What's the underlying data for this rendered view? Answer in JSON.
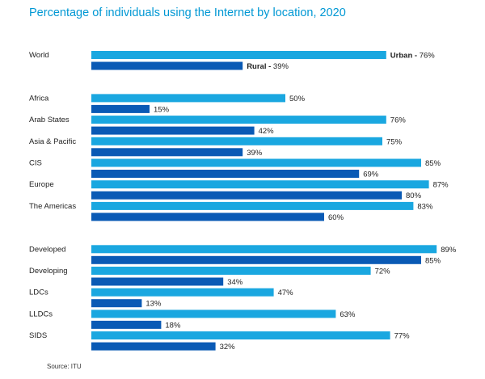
{
  "chart_data": {
    "type": "bar",
    "orientation": "horizontal",
    "title": "Percentage of individuals using the Internet by location, 2020",
    "source": "Source: ITU",
    "xlim": [
      0,
      100
    ],
    "value_suffix": "%",
    "series_colors": {
      "Urban": "#1aa7e0",
      "Rural": "#0a5ab5"
    },
    "groups": [
      [
        {
          "category": "World",
          "urban": 76,
          "rural": 39,
          "series_labels": true
        }
      ],
      [
        {
          "category": "Africa",
          "urban": 50,
          "rural": 15
        },
        {
          "category": "Arab States",
          "urban": 76,
          "rural": 42
        },
        {
          "category": "Asia & Pacific",
          "urban": 75,
          "rural": 39
        },
        {
          "category": "CIS",
          "urban": 85,
          "rural": 69
        },
        {
          "category": "Europe",
          "urban": 87,
          "rural": 80
        },
        {
          "category": "The Americas",
          "urban": 83,
          "rural": 60
        }
      ],
      [
        {
          "category": "Developed",
          "urban": 89,
          "rural": 85
        },
        {
          "category": "Developing",
          "urban": 72,
          "rural": 34
        },
        {
          "category": "LDCs",
          "urban": 47,
          "rural": 13
        },
        {
          "category": "LLDCs",
          "urban": 63,
          "rural": 18
        },
        {
          "category": "SIDS",
          "urban": 77,
          "rural": 32
        }
      ]
    ],
    "series_names": {
      "urban": "Urban",
      "rural": "Rural"
    }
  }
}
